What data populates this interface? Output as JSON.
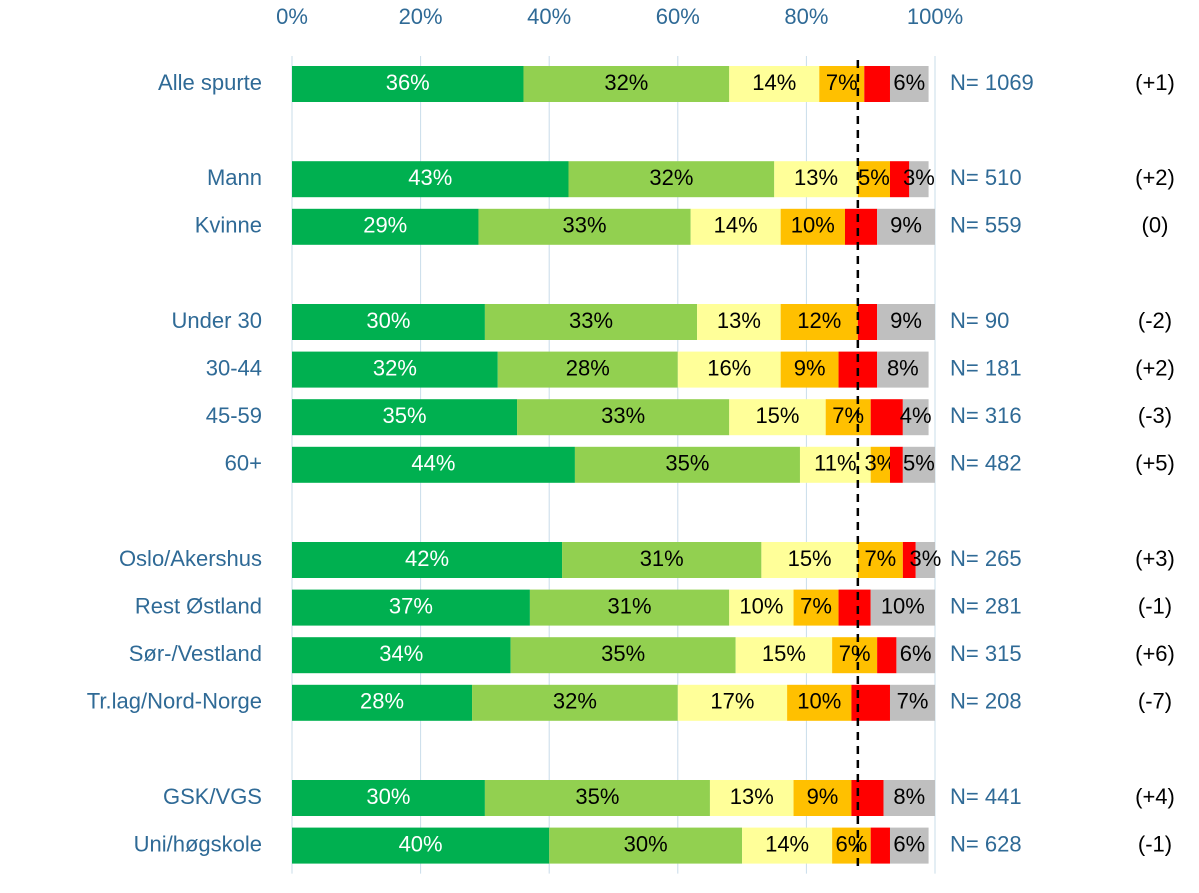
{
  "chart_data": {
    "type": "stacked_bar_horizontal",
    "categories": [
      "Alle spurte",
      null,
      "Mann",
      "Kvinne",
      null,
      "Under 30",
      "30-44",
      "45-59",
      "60+",
      null,
      "Oslo/Akershus",
      "Rest Østland",
      "Sør-/Vestland",
      "Tr.lag/Nord-Norge",
      null,
      "GSK/VGS",
      "Uni/høgskole"
    ],
    "series": [
      {
        "color": "#00b050",
        "label_color": "#ffffff",
        "values": [
          36,
          null,
          43,
          29,
          null,
          30,
          32,
          35,
          44,
          null,
          42,
          37,
          34,
          28,
          null,
          30,
          40
        ],
        "value_labels": [
          "36%",
          null,
          "43%",
          "29%",
          null,
          "30%",
          "32%",
          "35%",
          "44%",
          null,
          "42%",
          "37%",
          "34%",
          "28%",
          null,
          "30%",
          "40%"
        ]
      },
      {
        "color": "#92d050",
        "label_color": "#000000",
        "values": [
          32,
          null,
          32,
          33,
          null,
          33,
          28,
          33,
          35,
          null,
          31,
          31,
          35,
          32,
          null,
          35,
          30
        ],
        "value_labels": [
          "32%",
          null,
          "32%",
          "33%",
          null,
          "33%",
          "28%",
          "33%",
          "35%",
          null,
          "31%",
          "31%",
          "35%",
          "32%",
          null,
          "35%",
          "30%"
        ]
      },
      {
        "color": "#ffff99",
        "label_color": "#000000",
        "values": [
          14,
          null,
          13,
          14,
          null,
          13,
          16,
          15,
          11,
          null,
          15,
          10,
          15,
          17,
          null,
          13,
          14
        ],
        "value_labels": [
          "14%",
          null,
          "13%",
          "14%",
          null,
          "13%",
          "16%",
          "15%",
          "11%",
          null,
          "15%",
          "10%",
          "15%",
          "17%",
          null,
          "13%",
          "14%"
        ]
      },
      {
        "color": "#ffc000",
        "label_color": "#000000",
        "values": [
          7,
          null,
          5,
          10,
          null,
          12,
          9,
          7,
          3,
          null,
          7,
          7,
          7,
          10,
          null,
          9,
          6
        ],
        "value_labels": [
          "7%",
          null,
          "5%",
          "10%",
          null,
          "12%",
          "9%",
          "7%",
          "3%",
          null,
          "7%",
          "7%",
          "7%",
          "10%",
          null,
          "9%",
          "6%"
        ]
      },
      {
        "color": "#ff0000",
        "values": [
          4,
          null,
          3,
          5,
          null,
          3,
          6,
          5,
          2,
          null,
          2,
          5,
          3,
          6,
          null,
          5,
          3
        ]
      },
      {
        "color": "#bfbfbf",
        "label_color": "#000000",
        "values": [
          6,
          null,
          3,
          9,
          null,
          9,
          8,
          4,
          5,
          null,
          3,
          10,
          6,
          7,
          null,
          8,
          6
        ],
        "value_labels": [
          "6%",
          null,
          "3%",
          "9%",
          null,
          "9%",
          "8%",
          "4%",
          "5%",
          null,
          "3%",
          "10%",
          "6%",
          "7%",
          null,
          "8%",
          "6%"
        ]
      }
    ],
    "n_labels": [
      "N= 1069",
      null,
      "N= 510",
      "N= 559",
      null,
      "N= 90",
      "N= 181",
      "N= 316",
      "N= 482",
      null,
      "N= 265",
      "N= 281",
      "N= 315",
      "N= 208",
      null,
      "N= 441",
      "N= 628"
    ],
    "changes": [
      "(+1)",
      null,
      "(+2)",
      "(0)",
      null,
      "(-2)",
      "(+2)",
      "(-3)",
      "(+5)",
      null,
      "(+3)",
      "(-1)",
      "(+6)",
      "(-7)",
      null,
      "(+4)",
      "(-1)"
    ],
    "xlim": [
      0,
      100
    ],
    "xticks": [
      {
        "value": 0,
        "label": "0%"
      },
      {
        "value": 20,
        "label": "20%"
      },
      {
        "value": 40,
        "label": "40%"
      },
      {
        "value": 60,
        "label": "60%"
      },
      {
        "value": 80,
        "label": "80%"
      },
      {
        "value": 100,
        "label": "100%"
      }
    ],
    "grid": true,
    "reference_line": 88
  }
}
